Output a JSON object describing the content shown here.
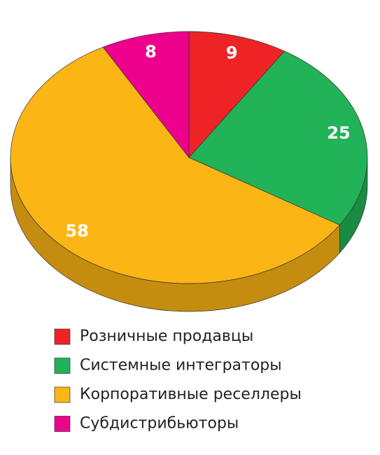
{
  "chart_data": {
    "type": "pie",
    "categories": [
      "Розничные продавцы",
      "Системные интеграторы",
      "Корпоративные реселлеры",
      "Субдистрибьюторы"
    ],
    "values": [
      9,
      25,
      58,
      8
    ],
    "colors": [
      "#ee2326",
      "#22b257",
      "#fbb515",
      "#ec008c"
    ]
  }
}
